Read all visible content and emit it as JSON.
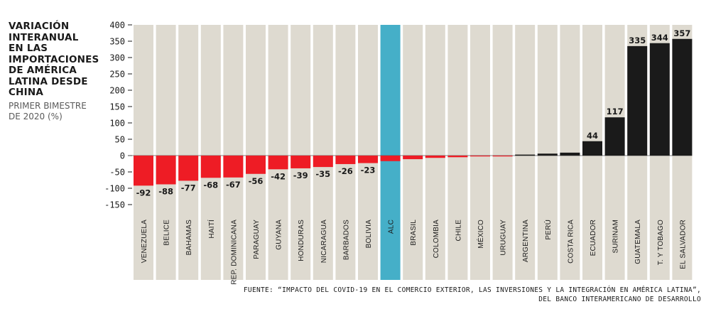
{
  "title": "VARIACIÓN INTERANUAL EN LAS IMPORTACIONES DE AMÉRICA LATINA DESDE CHINA",
  "title_lines": [
    "VARIACIÓN",
    "INTERANUAL",
    "EN LAS",
    "IMPORTACIONES",
    "DE AMÉRICA",
    "LATINA DESDE",
    "CHINA"
  ],
  "subtitle_lines": [
    "PRIMER BIMESTRE",
    "DE 2020 (%)"
  ],
  "source": {
    "line1": "FUENTE: “IMPACTO DEL COVID-19 EN EL COMERCIO EXTERIOR, LAS INVERSIONES Y LA INTEGRACIÓN EN AMÉRICA LATINA”,",
    "line2": "DEL BANCO INTERAMERICANO DE DESARROLLO"
  },
  "colors": {
    "negative": "#ee1c25",
    "positive": "#1a1a1a",
    "highlight": "#45afc8",
    "column_bg": "#dedad0",
    "highlight_bg": "#45afc8"
  },
  "chart_data": {
    "type": "bar",
    "title": "VARIACIÓN INTERANUAL EN LAS IMPORTACIONES DE AMÉRICA LATINA DESDE CHINA",
    "subtitle": "PRIMER BIMESTRE DE 2020 (%)",
    "categories": [
      "VENEZUELA",
      "BELICE",
      "BAHAMAS",
      "HAITÍ",
      "REP. DOMINICANA",
      "PARAGUAY",
      "GUYANA",
      "HONDURAS",
      "NICARAGUA",
      "BARBADOS",
      "BOLIVIA",
      "ALC",
      "BRASIL",
      "COLOMBIA",
      "CHILE",
      "MÉXICO",
      "URUGUAY",
      "ARGENTINA",
      "PERÚ",
      "COSTA RICA",
      "ECUADOR",
      "SURINAM",
      "GUATEMALA",
      "T. Y TOBAGO",
      "EL SALVADOR"
    ],
    "values": [
      -92,
      -88,
      -77,
      -68,
      -67,
      -56,
      -42,
      -39,
      -35,
      -26,
      -23,
      -17,
      -11,
      -7,
      -5,
      -1,
      -2,
      3,
      6,
      9,
      44,
      117,
      335,
      344,
      357
    ],
    "data_labels": [
      "-92",
      "-88",
      "-77",
      "-68",
      "-67",
      "-56",
      "-42",
      "-39",
      "-35",
      "-26",
      "-23",
      "",
      "",
      "",
      "",
      "",
      "",
      "",
      "",
      "",
      "44",
      "117",
      "335",
      "344",
      "357"
    ],
    "highlight_category": "ALC",
    "ylim": [
      -150,
      400
    ],
    "yticks": [
      400,
      350,
      300,
      250,
      200,
      150,
      100,
      50,
      0,
      -50,
      -100,
      -150
    ],
    "ytick_labels": [
      "400",
      "350",
      "300",
      "250",
      "200",
      "150",
      "100",
      "50",
      "0",
      "-50",
      "-100",
      "-150"
    ],
    "xlabel": "",
    "ylabel": "",
    "grid": false,
    "legend": "none"
  }
}
